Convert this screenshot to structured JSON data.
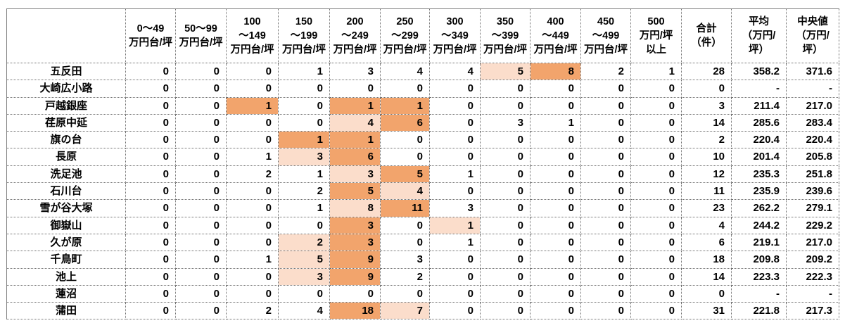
{
  "chart_data": {
    "type": "table",
    "title": "",
    "unit_note": "万円/坪",
    "column_headers": [
      [
        "0～49",
        "万円台/坪"
      ],
      [
        "50～99",
        "万円台/坪"
      ],
      [
        "100",
        "～149",
        "万円台/坪"
      ],
      [
        "150",
        "～199",
        "万円台/坪"
      ],
      [
        "200",
        "～249",
        "万円台/坪"
      ],
      [
        "250",
        "～299",
        "万円台/坪"
      ],
      [
        "300",
        "～349",
        "万円台/坪"
      ],
      [
        "350",
        "～399",
        "万円台/坪"
      ],
      [
        "400",
        "～449",
        "万円台/坪"
      ],
      [
        "450",
        "～499",
        "万円台/坪"
      ],
      [
        "500",
        "万円/坪",
        "以上"
      ],
      [
        "合計",
        "（件）"
      ],
      [
        "平均",
        "（万円/",
        "坪）"
      ],
      [
        "中央値",
        "（万円/",
        "坪）"
      ]
    ],
    "rows": [
      {
        "station": "五反田",
        "counts": [
          0,
          0,
          0,
          1,
          3,
          4,
          4,
          5,
          8,
          2,
          1
        ],
        "total": 28,
        "average": "358.2",
        "median": "371.6",
        "highlights": {
          "7": "light",
          "8": "dark"
        }
      },
      {
        "station": "大崎広小路",
        "counts": [
          0,
          0,
          0,
          0,
          0,
          0,
          0,
          0,
          0,
          0,
          0
        ],
        "total": 0,
        "average": "-",
        "median": "-",
        "highlights": {}
      },
      {
        "station": "戸越銀座",
        "counts": [
          0,
          0,
          1,
          0,
          1,
          1,
          0,
          0,
          0,
          0,
          0
        ],
        "total": 3,
        "average": "211.4",
        "median": "217.0",
        "highlights": {
          "2": "dark",
          "4": "dark",
          "5": "dark"
        }
      },
      {
        "station": "荏原中延",
        "counts": [
          0,
          0,
          0,
          0,
          4,
          6,
          0,
          3,
          1,
          0,
          0
        ],
        "total": 14,
        "average": "285.6",
        "median": "283.4",
        "highlights": {
          "4": "light",
          "5": "dark"
        }
      },
      {
        "station": "旗の台",
        "counts": [
          0,
          0,
          0,
          1,
          1,
          0,
          0,
          0,
          0,
          0,
          0
        ],
        "total": 2,
        "average": "220.4",
        "median": "220.4",
        "highlights": {
          "3": "dark",
          "4": "dark"
        }
      },
      {
        "station": "長原",
        "counts": [
          0,
          0,
          1,
          3,
          6,
          0,
          0,
          0,
          0,
          0,
          0
        ],
        "total": 10,
        "average": "201.4",
        "median": "205.8",
        "highlights": {
          "3": "light",
          "4": "dark"
        }
      },
      {
        "station": "洗足池",
        "counts": [
          0,
          0,
          2,
          1,
          3,
          5,
          1,
          0,
          0,
          0,
          0
        ],
        "total": 12,
        "average": "235.3",
        "median": "251.8",
        "highlights": {
          "4": "light",
          "5": "dark"
        }
      },
      {
        "station": "石川台",
        "counts": [
          0,
          0,
          0,
          2,
          5,
          4,
          0,
          0,
          0,
          0,
          0
        ],
        "total": 11,
        "average": "235.9",
        "median": "239.6",
        "highlights": {
          "4": "dark",
          "5": "light"
        }
      },
      {
        "station": "雪が谷大塚",
        "counts": [
          0,
          0,
          0,
          1,
          8,
          11,
          3,
          0,
          0,
          0,
          0
        ],
        "total": 23,
        "average": "262.2",
        "median": "279.1",
        "highlights": {
          "4": "light",
          "5": "dark"
        }
      },
      {
        "station": "御嶽山",
        "counts": [
          0,
          0,
          0,
          0,
          3,
          0,
          1,
          0,
          0,
          0,
          0
        ],
        "total": 4,
        "average": "244.2",
        "median": "229.2",
        "highlights": {
          "4": "dark",
          "6": "light"
        }
      },
      {
        "station": "久が原",
        "counts": [
          0,
          0,
          0,
          2,
          3,
          0,
          1,
          0,
          0,
          0,
          0
        ],
        "total": 6,
        "average": "219.1",
        "median": "217.0",
        "highlights": {
          "3": "light",
          "4": "dark"
        }
      },
      {
        "station": "千鳥町",
        "counts": [
          0,
          0,
          1,
          5,
          9,
          3,
          0,
          0,
          0,
          0,
          0
        ],
        "total": 18,
        "average": "209.8",
        "median": "209.2",
        "highlights": {
          "3": "light",
          "4": "dark"
        }
      },
      {
        "station": "池上",
        "counts": [
          0,
          0,
          0,
          3,
          9,
          2,
          0,
          0,
          0,
          0,
          0
        ],
        "total": 14,
        "average": "223.3",
        "median": "222.3",
        "highlights": {
          "3": "light",
          "4": "dark"
        }
      },
      {
        "station": "蓮沼",
        "counts": [
          0,
          0,
          0,
          0,
          0,
          0,
          0,
          0,
          0,
          0,
          0
        ],
        "total": 0,
        "average": "-",
        "median": "-",
        "highlights": {}
      },
      {
        "station": "蒲田",
        "counts": [
          0,
          0,
          2,
          4,
          18,
          7,
          0,
          0,
          0,
          0,
          0
        ],
        "total": 31,
        "average": "221.8",
        "median": "217.3",
        "highlights": {
          "4": "dark",
          "5": "light"
        }
      }
    ],
    "highlight_colors": {
      "dark": "#f2a46c",
      "light": "#fbddcb"
    }
  }
}
